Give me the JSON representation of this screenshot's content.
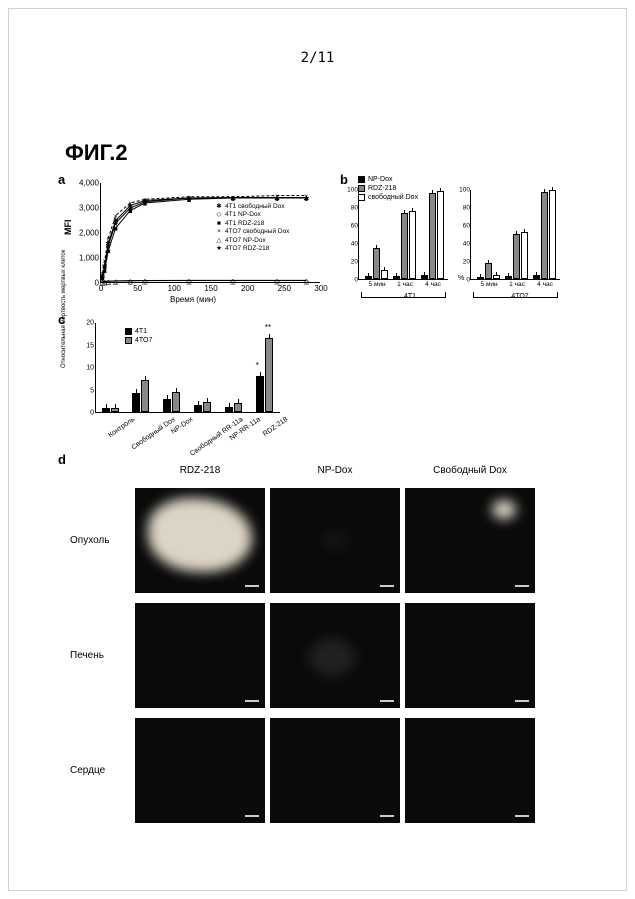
{
  "page_number": "2/11",
  "figure_title": "ФИГ.2",
  "panel_a": {
    "label": "a",
    "type": "line",
    "x_label": "Время (мин)",
    "y_label": "MFI",
    "xlim": [
      0,
      300
    ],
    "ylim": [
      0,
      4000
    ],
    "y_ticks": [
      "0",
      "1,000",
      "2,000",
      "3,000",
      "4,000"
    ],
    "x_ticks": [
      0,
      50,
      100,
      150,
      200,
      250,
      300
    ],
    "legend": [
      {
        "marker": "✱",
        "label": "4T1 свободный Dox"
      },
      {
        "marker": "◇",
        "label": "4T1 NP-Dox"
      },
      {
        "marker": "■",
        "label": "4T1 RDZ-218"
      },
      {
        "marker": "×",
        "label": "4TO7 свободный Dox"
      },
      {
        "marker": "△",
        "label": "4TO7 NP-Dox"
      },
      {
        "marker": "★",
        "label": "4TO7 RDZ-218"
      }
    ],
    "series": {
      "4T1_free": {
        "x": [
          2,
          5,
          10,
          20,
          40,
          60,
          120,
          180,
          240,
          280
        ],
        "y": [
          300,
          700,
          1600,
          2500,
          3100,
          3300,
          3400,
          3400,
          3400,
          3400
        ],
        "marker": "✱"
      },
      "4T1_NP": {
        "x": [
          2,
          5,
          10,
          20,
          40,
          60,
          120,
          180,
          240,
          280
        ],
        "y": [
          50,
          60,
          70,
          80,
          90,
          95,
          100,
          100,
          100,
          100
        ],
        "marker": "◇"
      },
      "4T1_RDZ": {
        "x": [
          2,
          5,
          10,
          20,
          40,
          60,
          120,
          180,
          240,
          280
        ],
        "y": [
          200,
          500,
          1300,
          2200,
          2900,
          3200,
          3350,
          3400,
          3400,
          3400
        ],
        "marker": "■"
      },
      "4TO7_free": {
        "x": [
          2,
          5,
          10,
          20,
          40,
          60,
          120,
          180,
          240,
          280
        ],
        "y": [
          400,
          900,
          1800,
          2700,
          3200,
          3350,
          3450,
          3450,
          3500,
          3500
        ],
        "marker": "×",
        "dashed": true
      },
      "4TO7_NP": {
        "x": [
          2,
          5,
          10,
          20,
          40,
          60,
          120,
          180,
          240,
          280
        ],
        "y": [
          60,
          65,
          75,
          85,
          95,
          100,
          105,
          105,
          105,
          105
        ],
        "marker": "△"
      },
      "4TO7_RDZ": {
        "x": [
          2,
          5,
          10,
          20,
          40,
          60,
          120,
          180,
          240,
          280
        ],
        "y": [
          250,
          600,
          1500,
          2400,
          3000,
          3250,
          3400,
          3420,
          3420,
          3420
        ],
        "marker": "★"
      }
    },
    "title_fontsize": 9,
    "label_fontsize": 8,
    "line_color": "#000000"
  },
  "panel_b": {
    "label": "b",
    "type": "bar",
    "y_label": "%",
    "ylim": [
      0,
      100
    ],
    "y_ticks": [
      0,
      20,
      40,
      60,
      80,
      100
    ],
    "legend": [
      {
        "color": "#000000",
        "label": "NP-Dox"
      },
      {
        "color": "#888888",
        "label": "RDZ-218"
      },
      {
        "color": "#ffffff",
        "label": "свободный Dox"
      }
    ],
    "groups": [
      "4T1",
      "4TO7"
    ],
    "categories": [
      "5 мин",
      "1 час",
      "4 час"
    ],
    "data": {
      "4T1": {
        "5 мин": {
          "NP-Dox": 3,
          "RDZ-218": 35,
          "free": 10
        },
        "1 час": {
          "NP-Dox": 3,
          "RDZ-218": 73,
          "free": 76
        },
        "4 час": {
          "NP-Dox": 5,
          "RDZ-218": 96,
          "free": 98
        }
      },
      "4TO7": {
        "5 мин": {
          "NP-Dox": 2,
          "RDZ-218": 18,
          "free": 5
        },
        "1 час": {
          "NP-Dox": 3,
          "RDZ-218": 50,
          "free": 52
        },
        "4 час": {
          "NP-Dox": 4,
          "RDZ-218": 97,
          "free": 99
        }
      }
    },
    "bar_colors": {
      "NP-Dox": "#000000",
      "RDZ-218": "#888888",
      "free": "#ffffff"
    }
  },
  "panel_c": {
    "label": "c",
    "type": "bar",
    "y_label": "Относительная мертвость мертвых клеток",
    "ylim": [
      0,
      20
    ],
    "y_ticks": [
      0,
      5,
      10,
      15,
      20
    ],
    "legend": [
      {
        "color": "#000000",
        "label": "4T1"
      },
      {
        "color": "#888888",
        "label": "4TO7"
      }
    ],
    "categories": [
      "Контроль",
      "Свободный Dox",
      "NP-Dox",
      "Свободный RR-11a",
      "NP-RR-11a",
      "RDZ-218"
    ],
    "data": {
      "Контроль": {
        "4T1": 1.0,
        "4TO7": 1.0
      },
      "Свободный Dox": {
        "4T1": 4.2,
        "4TO7": 7.2
      },
      "NP-Dox": {
        "4T1": 3.0,
        "4TO7": 4.5
      },
      "Свободный RR-11a": {
        "4T1": 1.5,
        "4TO7": 2.2
      },
      "NP-RR-11a": {
        "4T1": 1.2,
        "4TO7": 2.0
      },
      "RDZ-218": {
        "4T1": 8.0,
        "4TO7": 16.5
      }
    },
    "significance": {
      "RDZ-218": {
        "4T1": "*",
        "4TO7": "**"
      }
    },
    "bar_colors": {
      "4T1": "#000000",
      "4TO7": "#888888"
    }
  },
  "panel_d": {
    "label": "d",
    "columns": [
      "RDZ-218",
      "NP-Dox",
      "Свободный Dox"
    ],
    "rows": [
      "Опухоль",
      "Печень",
      "Сердце"
    ],
    "images": {
      "Опухоль_RDZ-218": {
        "intensity": "high",
        "color": "#e8e0d0",
        "spread": 70
      },
      "Опухоль_NP-Dox": {
        "intensity": "low",
        "color": "#353030",
        "spread": 20
      },
      "Опухоль_Свободный Dox": {
        "intensity": "medium-spot",
        "color": "#f5f0e0",
        "spread": 18
      },
      "Печень_RDZ-218": {
        "intensity": "very-low",
        "color": "#1a1515",
        "spread": 10
      },
      "Печень_NP-Dox": {
        "intensity": "low-diffuse",
        "color": "#4a4540",
        "spread": 35
      },
      "Печень_Свободный Dox": {
        "intensity": "none",
        "color": "#0a0a0a",
        "spread": 0
      },
      "Сердце_RDZ-218": {
        "intensity": "none",
        "color": "#0a0a0a",
        "spread": 0
      },
      "Сердце_NP-Dox": {
        "intensity": "none",
        "color": "#0f0d0d",
        "spread": 0
      },
      "Сердце_Свободный Dox": {
        "intensity": "none",
        "color": "#0a0a0a",
        "spread": 0
      }
    },
    "background": "#0a0a0a"
  },
  "colors": {
    "black": "#000000",
    "gray": "#888888",
    "white": "#ffffff",
    "page_bg": "#ffffff"
  }
}
